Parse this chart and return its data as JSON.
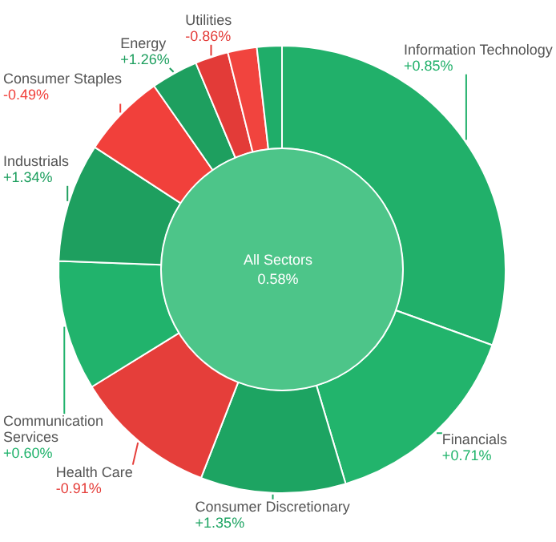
{
  "chart_data": {
    "type": "donut",
    "categories": [
      "Information Technology",
      "Financials",
      "Consumer Discretionary",
      "Health Care",
      "Communication Services",
      "Industrials",
      "Consumer Staples",
      "Energy",
      "Utilities",
      null,
      null
    ],
    "values": [
      30.5,
      14.9,
      10.5,
      10.3,
      9.4,
      8.6,
      6.1,
      3.4,
      2.4,
      2.1,
      1.8
    ],
    "colors": [
      "#21b06a",
      "#22b46c",
      "#1da462",
      "#e53e3a",
      "#21b36c",
      "#1e9f5f",
      "#f1403b",
      "#1e9f5f",
      "#e33b38",
      "#f1443e",
      "#1fad69"
    ],
    "annotations": [
      "All Sectors",
      "0.58%",
      {
        "text": "+0.85%",
        "x": "Information Technology"
      },
      {
        "text": "+0.71%",
        "x": "Financials"
      },
      {
        "text": "+1.35%",
        "x": "Consumer Discretionary"
      },
      {
        "text": "-0.91%",
        "x": "Health Care"
      },
      {
        "text": "+0.60%",
        "x": "Communication Services"
      },
      {
        "text": "+1.34%",
        "x": "Industrials"
      },
      {
        "text": "-0.49%",
        "x": "Consumer Staples"
      },
      {
        "text": "+1.26%",
        "x": "Energy"
      },
      {
        "text": "-0.86%",
        "x": "Utilities"
      }
    ],
    "legend": false
  }
}
